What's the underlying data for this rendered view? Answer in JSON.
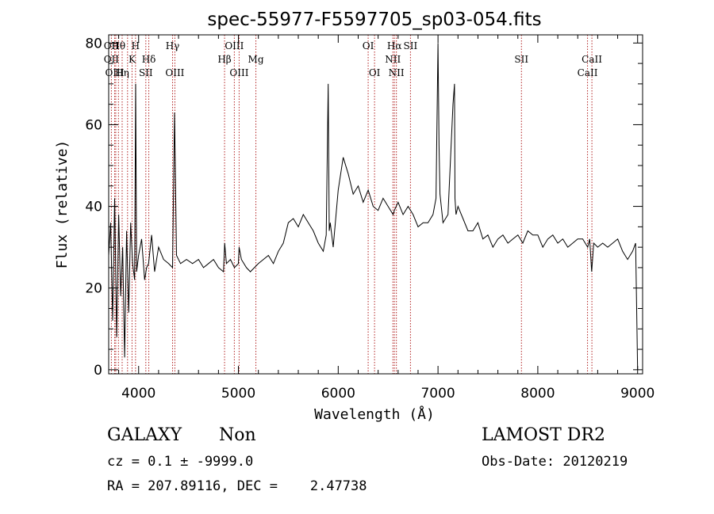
{
  "chart_data": {
    "type": "line",
    "title": "spec-55977-F5597705_sp03-054.fits",
    "xlabel": "Wavelength (Å)",
    "ylabel": "Flux (relative)",
    "xlim": [
      3700,
      9050
    ],
    "ylim": [
      -1,
      82
    ],
    "x_ticks": [
      4000,
      5000,
      6000,
      7000,
      8000,
      9000
    ],
    "y_ticks": [
      0,
      20,
      40,
      60,
      80
    ],
    "grid": false,
    "series": [
      {
        "x": [
          3700,
          3720,
          3740,
          3760,
          3780,
          3800,
          3820,
          3840,
          3860,
          3880,
          3900,
          3920,
          3940,
          3960,
          3970,
          3980,
          4000,
          4030,
          4060,
          4080,
          4100,
          4130,
          4160,
          4200,
          4250,
          4300,
          4340,
          4360,
          4380,
          4420,
          4480,
          4540,
          4600,
          4650,
          4700,
          4750,
          4800,
          4850,
          4862,
          4880,
          4920,
          4960,
          5000,
          5007,
          5030,
          5080,
          5120,
          5160,
          5200,
          5250,
          5300,
          5350,
          5400,
          5450,
          5500,
          5550,
          5600,
          5650,
          5700,
          5750,
          5800,
          5850,
          5880,
          5900,
          5910,
          5920,
          5950,
          6000,
          6050,
          6100,
          6150,
          6200,
          6250,
          6300,
          6350,
          6400,
          6450,
          6500,
          6550,
          6563,
          6600,
          6650,
          6700,
          6750,
          6800,
          6850,
          6900,
          6950,
          6980,
          7000,
          7010,
          7020,
          7050,
          7100,
          7150,
          7165,
          7170,
          7180,
          7200,
          7250,
          7300,
          7350,
          7400,
          7450,
          7500,
          7550,
          7600,
          7650,
          7700,
          7750,
          7800,
          7850,
          7900,
          7950,
          8000,
          8050,
          8100,
          8150,
          8200,
          8250,
          8300,
          8350,
          8400,
          8450,
          8500,
          8520,
          8540,
          8560,
          8600,
          8650,
          8700,
          8750,
          8800,
          8850,
          8900,
          8950,
          8980,
          9000
        ],
        "y": [
          28,
          36,
          12,
          42,
          8,
          38,
          18,
          30,
          3,
          34,
          14,
          36,
          26,
          22,
          70,
          24,
          28,
          32,
          22,
          25,
          26,
          33,
          24,
          30,
          27,
          26,
          25,
          63,
          28,
          26,
          27,
          26,
          27,
          25,
          26,
          27,
          25,
          24,
          31,
          26,
          27,
          25,
          26,
          30,
          27,
          25,
          24,
          25,
          26,
          27,
          28,
          26,
          29,
          31,
          36,
          37,
          35,
          38,
          36,
          34,
          31,
          29,
          33,
          70,
          34,
          36,
          30,
          44,
          52,
          48,
          43,
          45,
          41,
          44,
          40,
          39,
          42,
          40,
          38,
          39,
          41,
          38,
          40,
          38,
          35,
          36,
          36,
          38,
          42,
          80,
          55,
          43,
          36,
          38,
          65,
          70,
          42,
          38,
          40,
          37,
          34,
          34,
          36,
          32,
          33,
          30,
          32,
          33,
          31,
          32,
          33,
          31,
          34,
          33,
          33,
          30,
          32,
          33,
          31,
          32,
          30,
          31,
          32,
          32,
          30,
          32,
          24,
          31,
          30,
          31,
          30,
          31,
          32,
          29,
          27,
          29,
          31,
          0
        ]
      }
    ],
    "line_markers": [
      {
        "w": 3727,
        "top": "OII",
        "mid": "OII",
        "bottom": ""
      },
      {
        "w": 3760,
        "top": "",
        "mid": "",
        "bottom": "OIII"
      },
      {
        "w": 3771,
        "top": "",
        "mid": "",
        "bottom": ""
      },
      {
        "w": 3798,
        "top": "Hθ",
        "mid": "",
        "bottom": ""
      },
      {
        "w": 3835,
        "top": "",
        "mid": "",
        "bottom": "Hη"
      },
      {
        "w": 3889,
        "top": "",
        "mid": "",
        "bottom": ""
      },
      {
        "w": 3934,
        "top": "",
        "mid": "K",
        "bottom": ""
      },
      {
        "w": 3969,
        "top": "H",
        "mid": "",
        "bottom": ""
      },
      {
        "w": 4072,
        "top": "",
        "mid": "",
        "bottom": "SII"
      },
      {
        "w": 4102,
        "top": "",
        "mid": "Hδ",
        "bottom": ""
      },
      {
        "w": 4340,
        "top": "Hγ",
        "mid": "",
        "bottom": ""
      },
      {
        "w": 4363,
        "top": "",
        "mid": "",
        "bottom": "OIII"
      },
      {
        "w": 4861,
        "top": "",
        "mid": "Hβ",
        "bottom": ""
      },
      {
        "w": 4959,
        "top": "OIII",
        "mid": "",
        "bottom": ""
      },
      {
        "w": 5007,
        "top": "",
        "mid": "",
        "bottom": "OIII"
      },
      {
        "w": 5175,
        "top": "",
        "mid": "Mg",
        "bottom": ""
      },
      {
        "w": 6300,
        "top": "OI",
        "mid": "",
        "bottom": ""
      },
      {
        "w": 6364,
        "top": "",
        "mid": "",
        "bottom": "OI"
      },
      {
        "w": 6548,
        "top": "",
        "mid": "NII",
        "bottom": ""
      },
      {
        "w": 6563,
        "top": "Hα",
        "mid": "",
        "bottom": ""
      },
      {
        "w": 6583,
        "top": "",
        "mid": "",
        "bottom": "NII"
      },
      {
        "w": 6724,
        "top": "SII",
        "mid": "",
        "bottom": ""
      },
      {
        "w": 7836,
        "top": "",
        "mid": "SII",
        "bottom": ""
      },
      {
        "w": 8498,
        "top": "",
        "mid": "",
        "bottom": "CaII"
      },
      {
        "w": 8542,
        "top": "",
        "mid": "CaII",
        "bottom": ""
      }
    ]
  },
  "info": {
    "object_class": "GALAXY",
    "subclass": "Non",
    "survey": "LAMOST DR2",
    "cz": "cz = 0.1 ± -9999.0",
    "obs_date": "Obs-Date: 20120219",
    "coords": "RA = 207.89116, DEC =    2.47738"
  }
}
